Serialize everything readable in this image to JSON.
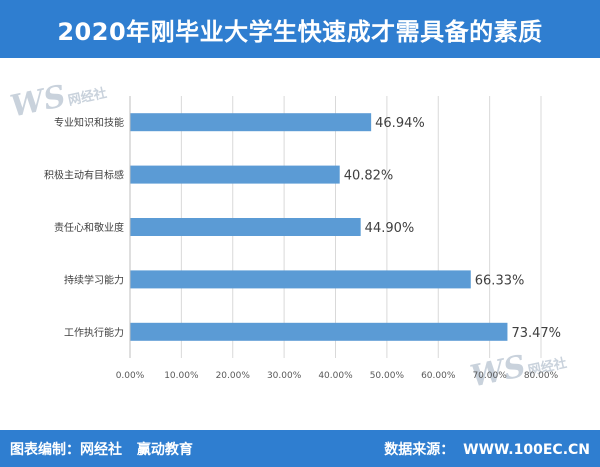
{
  "header": {
    "title": "2020年刚毕业大学生快速成才需具备的素质"
  },
  "footer": {
    "credit_label": "图表编制：网经社",
    "credit_org": "赢动教育",
    "source_label": "数据来源：",
    "source_url": "WWW.100EC.CN"
  },
  "watermark": {
    "logo_text": "WS",
    "name": "网经社"
  },
  "colors": {
    "header_bg": "#2f7ed0",
    "bar": "#5b9bd5",
    "grid": "#d9d9d9"
  },
  "chart_data": {
    "type": "bar",
    "orientation": "horizontal",
    "categories": [
      "专业知识和技能",
      "积极主动有目标感",
      "责任心和敬业度",
      "持续学习能力",
      "工作执行能力"
    ],
    "values": [
      46.94,
      40.82,
      44.9,
      66.33,
      73.47
    ],
    "value_labels": [
      "46.94%",
      "40.82%",
      "44.90%",
      "66.33%",
      "73.47%"
    ],
    "xlim": [
      0,
      80
    ],
    "xticks": [
      "0.00%",
      "10.00%",
      "20.00%",
      "30.00%",
      "40.00%",
      "50.00%",
      "60.00%",
      "70.00%",
      "80.00%"
    ],
    "grid": true,
    "legend": "none"
  }
}
